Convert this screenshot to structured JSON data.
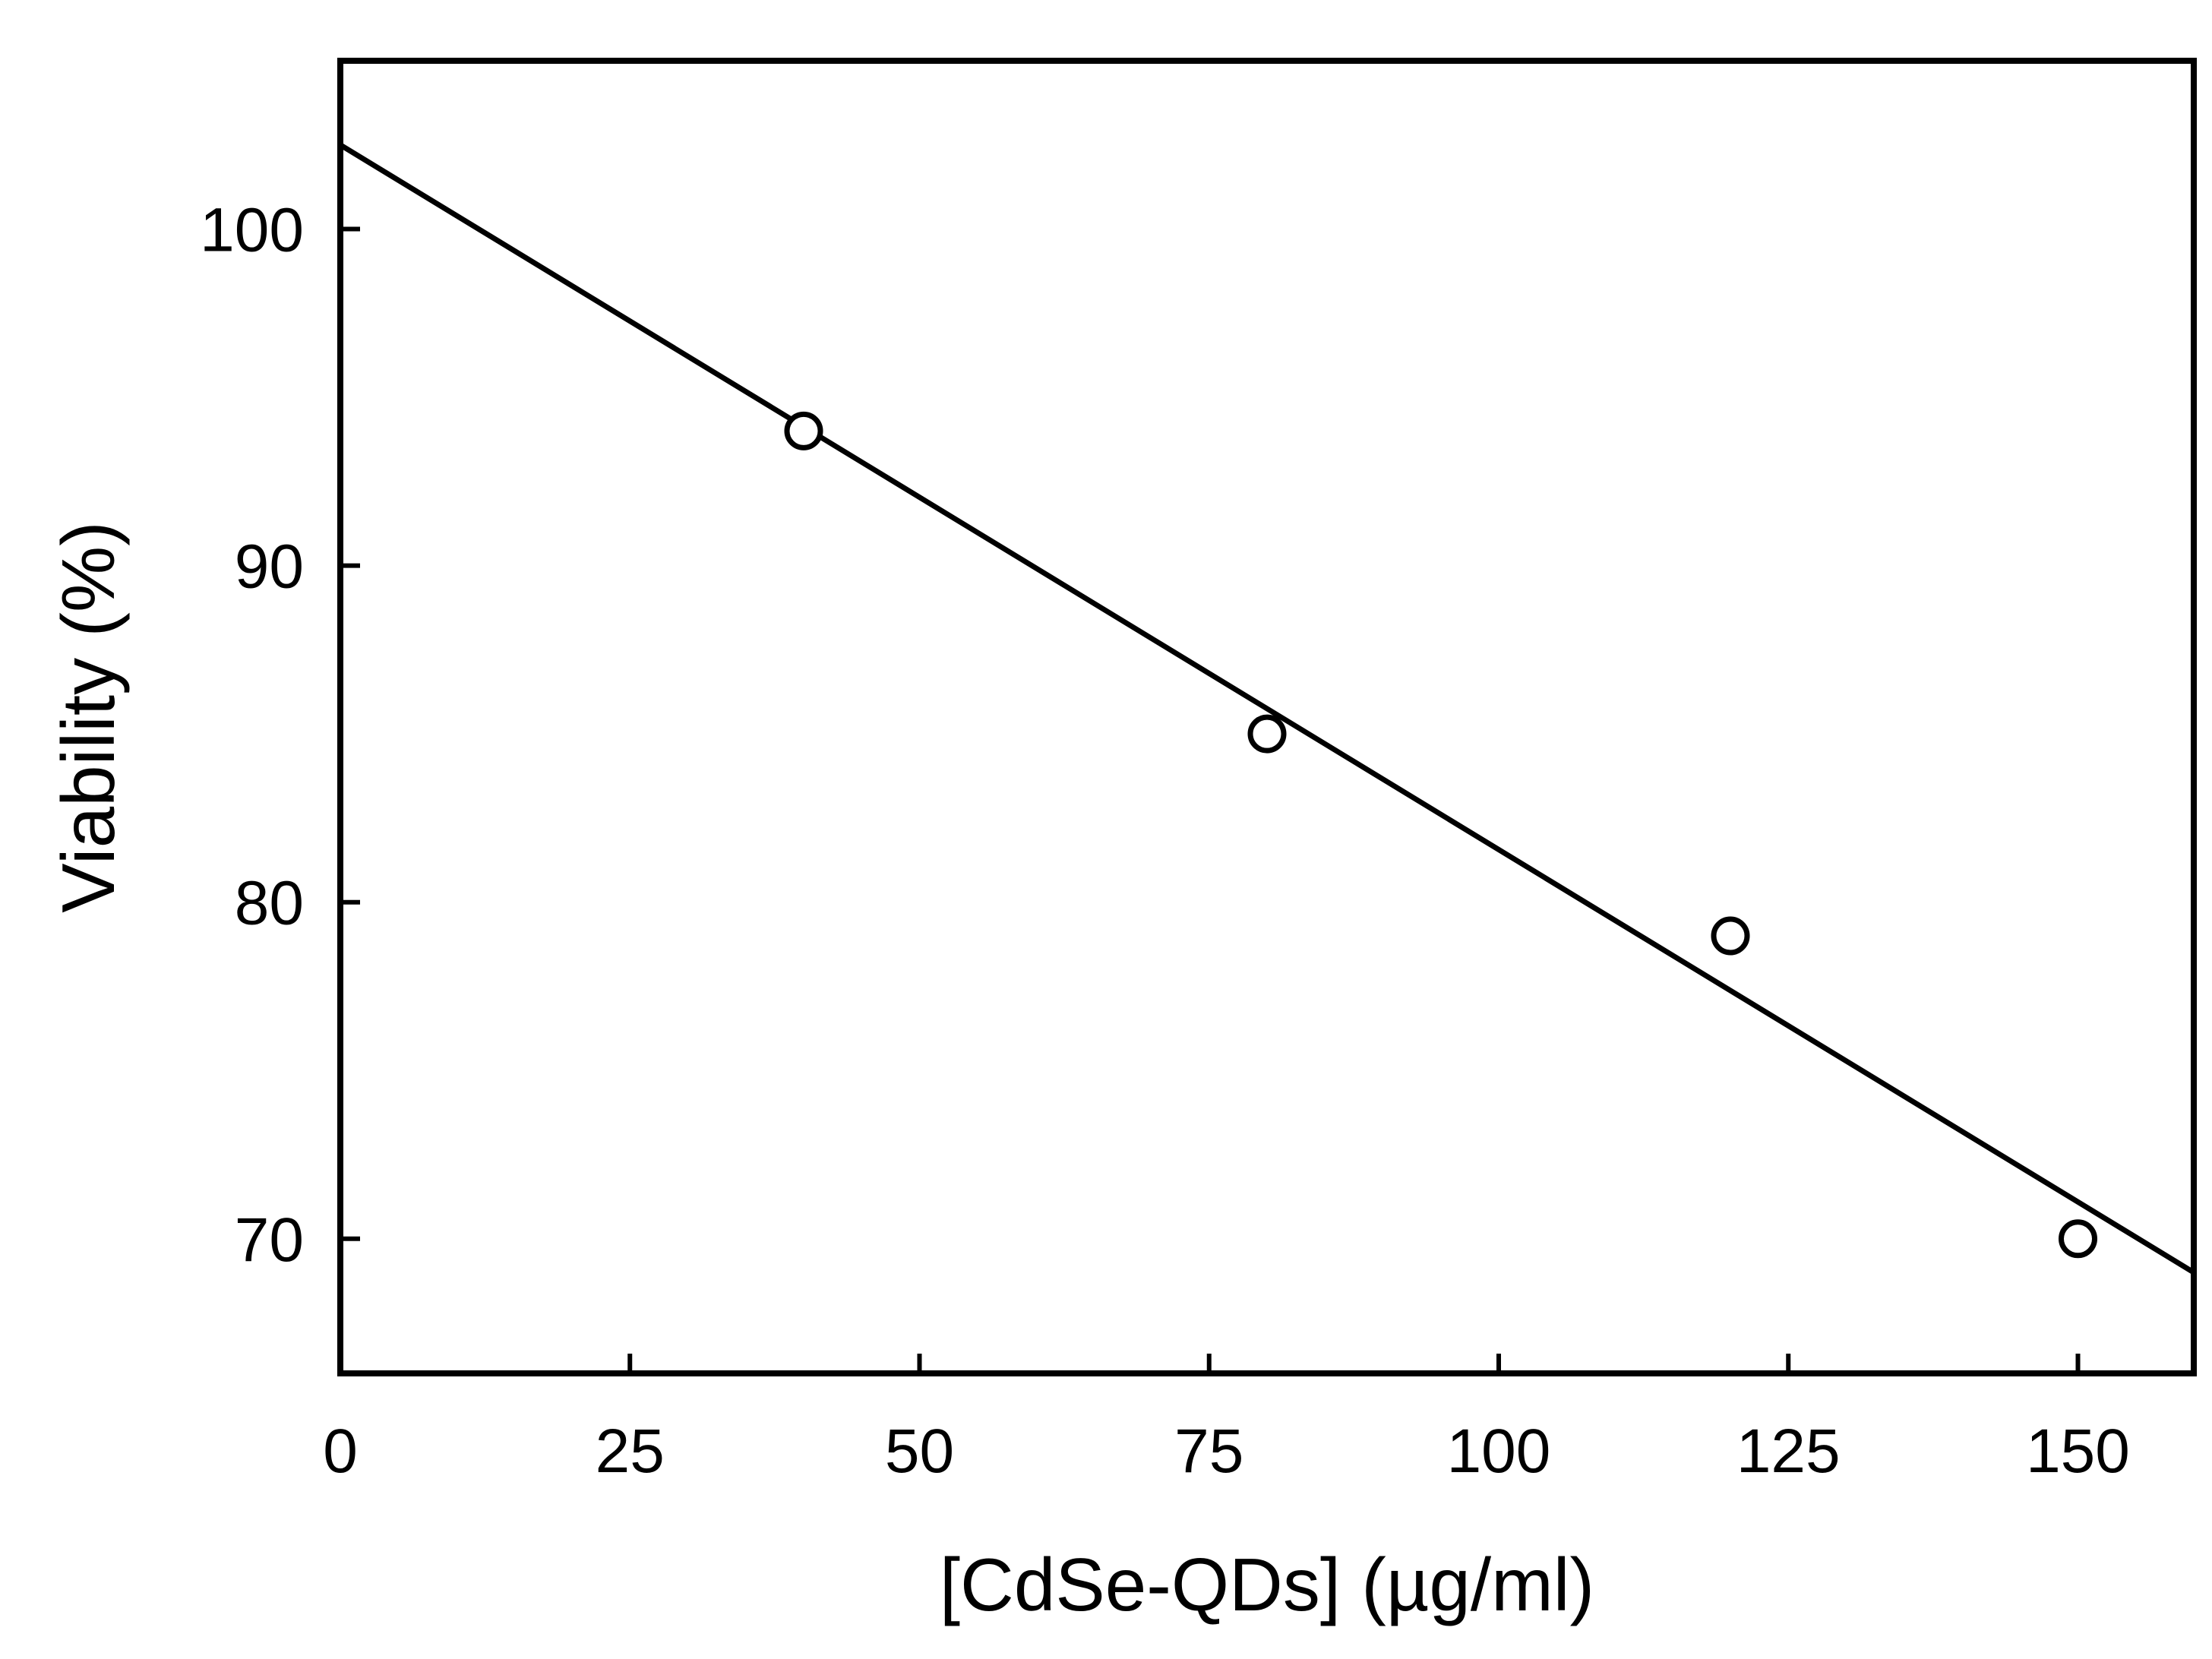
{
  "chart_data": {
    "type": "scatter",
    "title": "",
    "xlabel": "[CdSe-QDs] (µg/ml)",
    "ylabel": "Viability (%)",
    "xlim": [
      0,
      160
    ],
    "ylim": [
      66,
      105
    ],
    "x_ticks": [
      0,
      25,
      50,
      75,
      100,
      125,
      150
    ],
    "y_ticks": [
      70,
      80,
      90,
      100
    ],
    "grid": false,
    "legend": "none",
    "series": [
      {
        "marker": "open-circle",
        "x": [
          40,
          80,
          120,
          150
        ],
        "y": [
          94,
          85,
          79,
          70
        ]
      }
    ],
    "fit_line": {
      "style": "solid",
      "x": [
        0,
        160
      ],
      "y": [
        102.5,
        69
      ]
    },
    "colors": {
      "ink": "#000000",
      "background": "#ffffff"
    }
  }
}
